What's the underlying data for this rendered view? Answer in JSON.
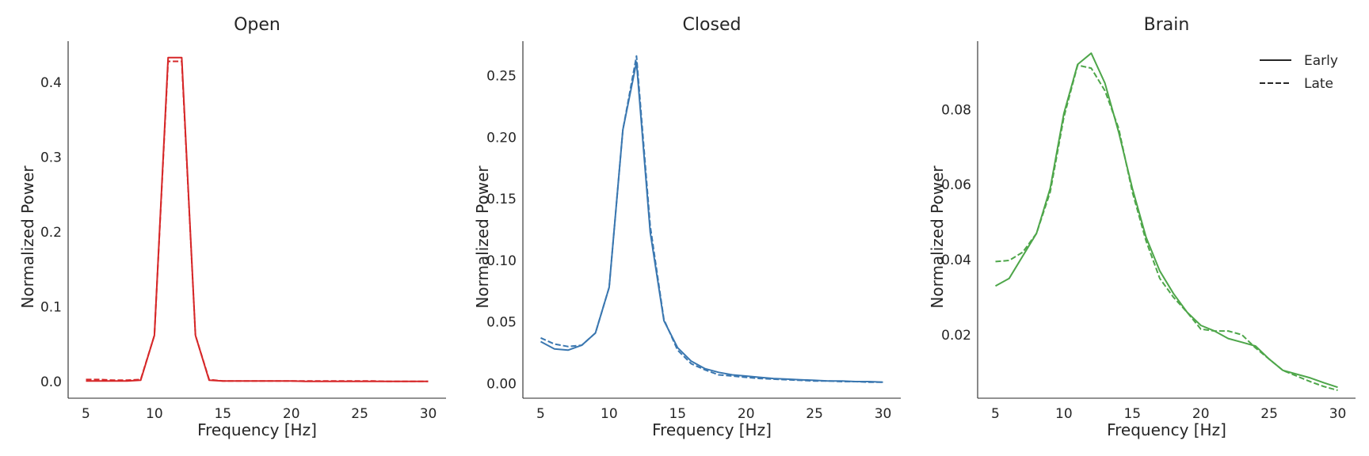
{
  "chart_data": [
    {
      "type": "line",
      "title": "Open",
      "xlabel": "Frequency [Hz]",
      "ylabel": "Normalized Power",
      "xlim": [
        3.7,
        31.3
      ],
      "ylim": [
        -0.022,
        0.455
      ],
      "xticks": [
        5,
        10,
        15,
        20,
        25,
        30
      ],
      "yticks": [
        0.0,
        0.1,
        0.2,
        0.3,
        0.4
      ],
      "ytick_labels": [
        "0.0",
        "0.1",
        "0.2",
        "0.3",
        "0.4"
      ],
      "grid": false,
      "color": "#d62728",
      "series": [
        {
          "style": "solid",
          "x": [
            5,
            6,
            7,
            8,
            9,
            10,
            11,
            12,
            13,
            14,
            15,
            16,
            17,
            18,
            19,
            20,
            21,
            22,
            23,
            24,
            25,
            26,
            27,
            28,
            29,
            30
          ],
          "y": [
            0.001,
            0.001,
            0.001,
            0.001,
            0.002,
            0.062,
            0.433,
            0.433,
            0.062,
            0.002,
            0.001,
            0.001,
            0.001,
            0.001,
            0.001,
            0.001,
            0.0005,
            0.0005,
            0.0005,
            0.0005,
            0.0005,
            0.0005,
            0.0005,
            0.0005,
            0.0005,
            0.0005
          ]
        },
        {
          "style": "dashed",
          "x": [
            5,
            6,
            7,
            8,
            9,
            10,
            11,
            12,
            13,
            14,
            15,
            16,
            17,
            18,
            19,
            20,
            21,
            22,
            23,
            24,
            25,
            26,
            27,
            28,
            29,
            30
          ],
          "y": [
            0.003,
            0.003,
            0.002,
            0.002,
            0.003,
            0.062,
            0.428,
            0.428,
            0.062,
            0.003,
            0.001,
            0.001,
            0.001,
            0.001,
            0.001,
            0.001,
            0.001,
            0.001,
            0.001,
            0.001,
            0.001,
            0.001,
            0.0005,
            0.0005,
            0.0005,
            0.0005
          ]
        }
      ]
    },
    {
      "type": "line",
      "title": "Closed",
      "xlabel": "Frequency [Hz]",
      "ylabel": "Normalized Power",
      "xlim": [
        3.7,
        31.3
      ],
      "ylim": [
        -0.012,
        0.278
      ],
      "xticks": [
        5,
        10,
        15,
        20,
        25,
        30
      ],
      "yticks": [
        0.0,
        0.05,
        0.1,
        0.15,
        0.2,
        0.25
      ],
      "ytick_labels": [
        "0.00",
        "0.05",
        "0.10",
        "0.15",
        "0.20",
        "0.25"
      ],
      "grid": false,
      "color": "#3a77b0",
      "series": [
        {
          "style": "solid",
          "x": [
            5,
            6,
            7,
            8,
            9,
            10,
            11,
            12,
            13,
            14,
            15,
            16,
            17,
            18,
            19,
            20,
            21,
            22,
            23,
            24,
            25,
            26,
            27,
            28,
            29,
            30
          ],
          "y": [
            0.034,
            0.028,
            0.027,
            0.031,
            0.041,
            0.078,
            0.206,
            0.261,
            0.123,
            0.051,
            0.029,
            0.018,
            0.012,
            0.009,
            0.007,
            0.006,
            0.005,
            0.004,
            0.0035,
            0.003,
            0.0025,
            0.002,
            0.002,
            0.0015,
            0.0015,
            0.001
          ]
        },
        {
          "style": "dashed",
          "x": [
            5,
            6,
            7,
            8,
            9,
            10,
            11,
            12,
            13,
            14,
            15,
            16,
            17,
            18,
            19,
            20,
            21,
            22,
            23,
            24,
            25,
            26,
            27,
            28,
            29,
            30
          ],
          "y": [
            0.037,
            0.032,
            0.03,
            0.031,
            0.041,
            0.078,
            0.206,
            0.266,
            0.128,
            0.052,
            0.027,
            0.016,
            0.011,
            0.007,
            0.006,
            0.005,
            0.004,
            0.0035,
            0.003,
            0.0025,
            0.002,
            0.002,
            0.0015,
            0.0015,
            0.001,
            0.001
          ]
        }
      ]
    },
    {
      "type": "line",
      "title": "Brain",
      "xlabel": "Frequency [Hz]",
      "ylabel": "Normalized Power",
      "xlim": [
        3.7,
        31.3
      ],
      "ylim": [
        0.0031,
        0.0982
      ],
      "xticks": [
        5,
        10,
        15,
        20,
        25,
        30
      ],
      "yticks": [
        0.02,
        0.04,
        0.06,
        0.08
      ],
      "ytick_labels": [
        "0.02",
        "0.04",
        "0.06",
        "0.08"
      ],
      "grid": false,
      "color": "#4ea64a",
      "legend": {
        "placement": "top-right",
        "entries": [
          {
            "label": "Early",
            "style": "solid"
          },
          {
            "label": "Late",
            "style": "dashed"
          }
        ]
      },
      "series": [
        {
          "style": "solid",
          "x": [
            5,
            6,
            7,
            8,
            9,
            10,
            11,
            12,
            13,
            14,
            15,
            16,
            17,
            18,
            19,
            20,
            21,
            22,
            23,
            24,
            25,
            26,
            27,
            28,
            29,
            30
          ],
          "y": [
            0.033,
            0.035,
            0.041,
            0.047,
            0.059,
            0.079,
            0.092,
            0.095,
            0.087,
            0.074,
            0.059,
            0.046,
            0.037,
            0.031,
            0.026,
            0.0225,
            0.021,
            0.019,
            0.018,
            0.017,
            0.0135,
            0.0105,
            0.0095,
            0.0085,
            0.0072,
            0.006
          ]
        },
        {
          "style": "dashed",
          "x": [
            5,
            6,
            7,
            8,
            9,
            10,
            11,
            12,
            13,
            14,
            15,
            16,
            17,
            18,
            19,
            20,
            21,
            22,
            23,
            24,
            25,
            26,
            27,
            28,
            29,
            30
          ],
          "y": [
            0.0395,
            0.0398,
            0.042,
            0.047,
            0.058,
            0.078,
            0.0918,
            0.091,
            0.085,
            0.075,
            0.058,
            0.045,
            0.035,
            0.03,
            0.026,
            0.0215,
            0.021,
            0.021,
            0.02,
            0.0165,
            0.0135,
            0.0105,
            0.009,
            0.0075,
            0.0062,
            0.0052
          ]
        }
      ]
    }
  ]
}
